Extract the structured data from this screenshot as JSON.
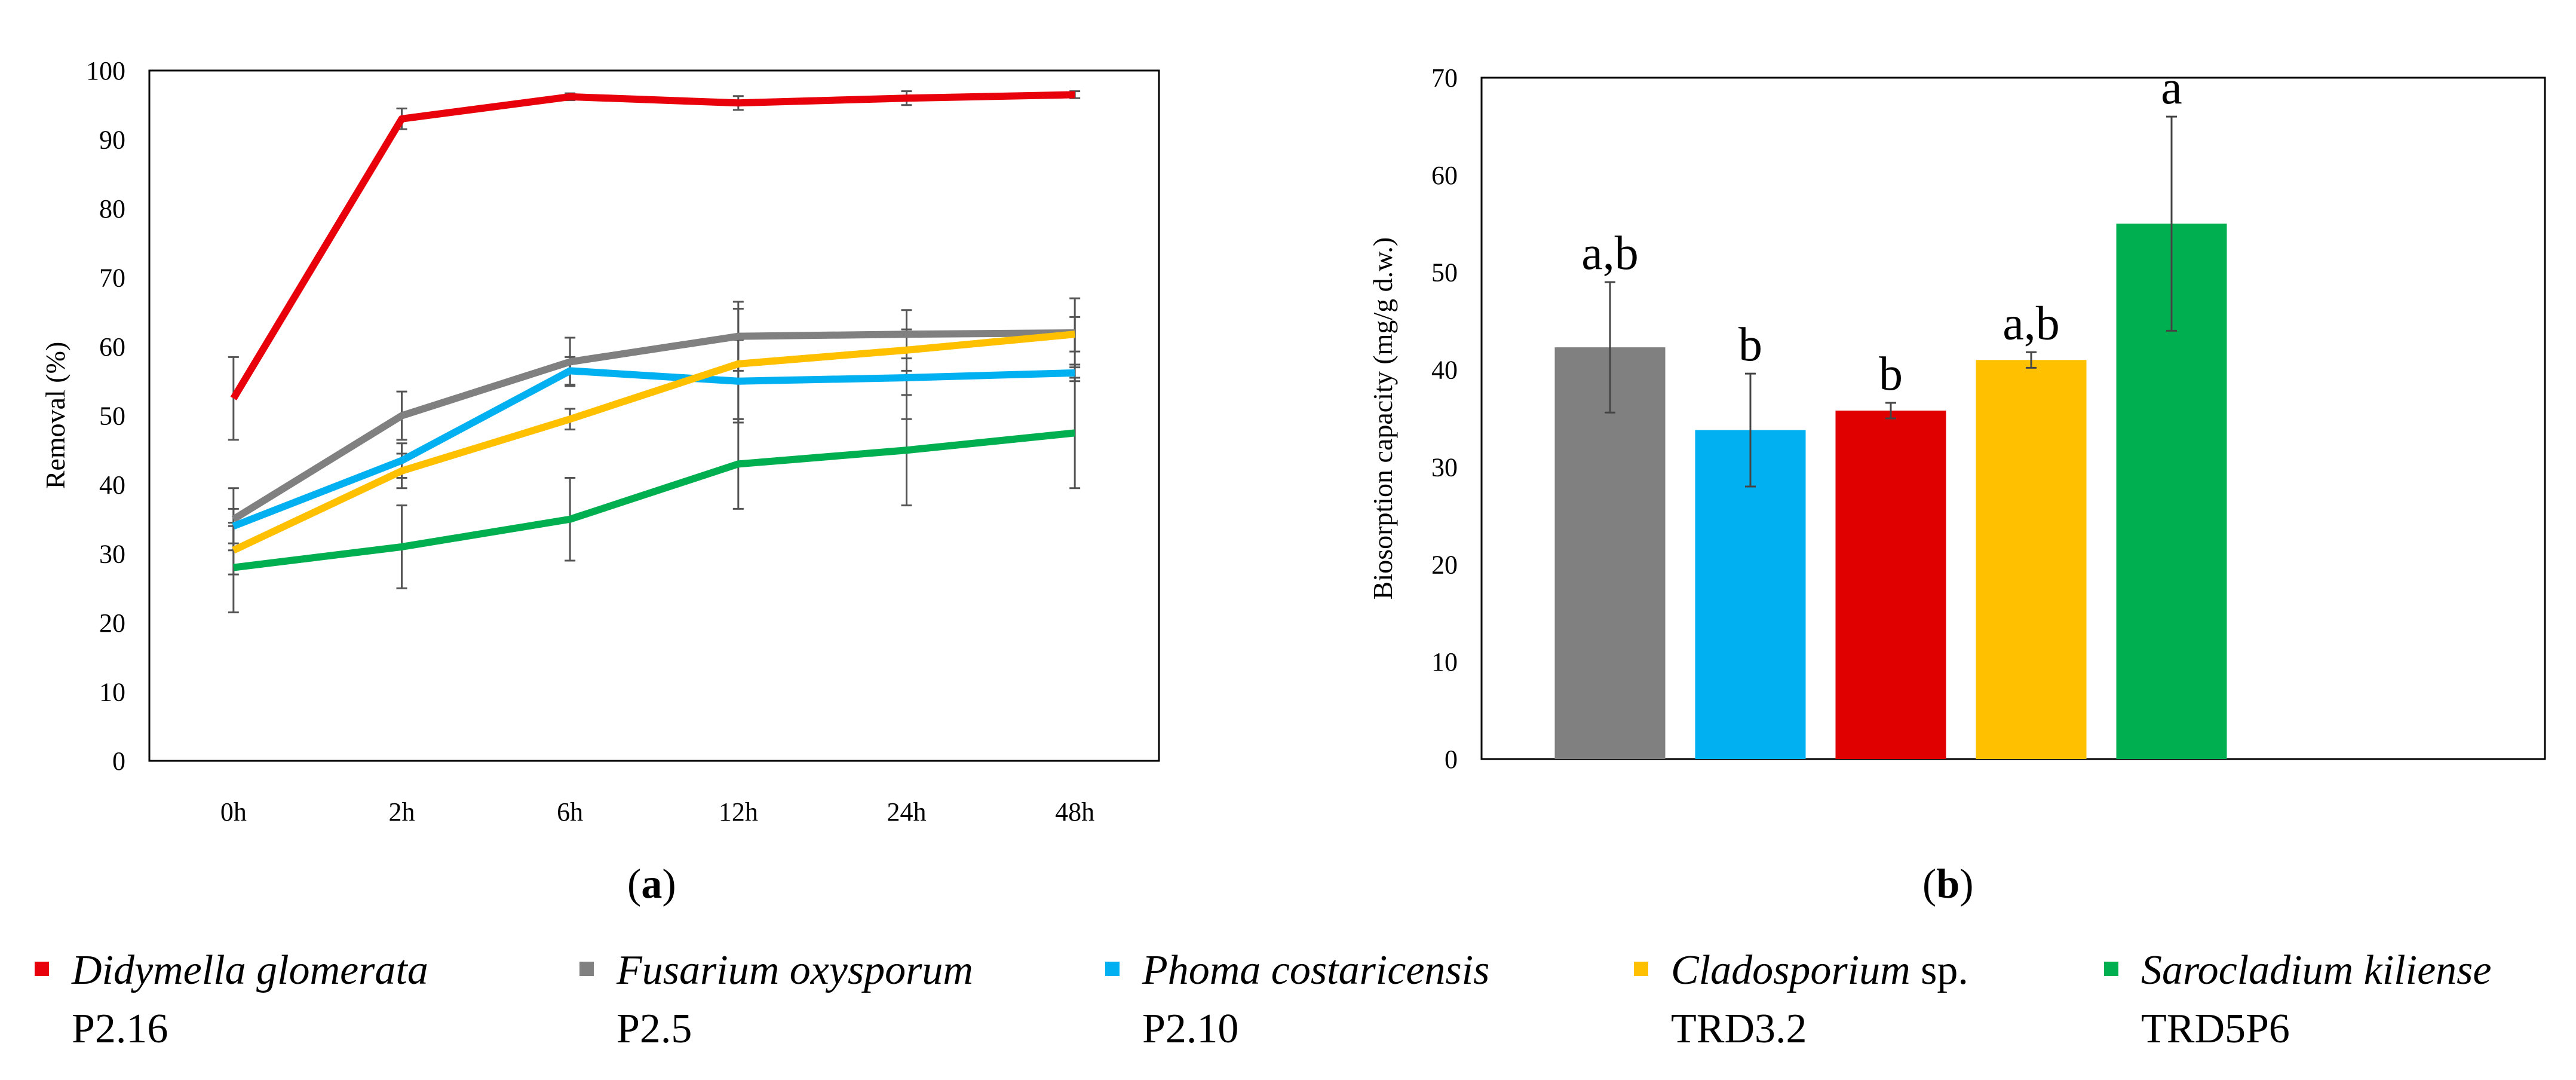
{
  "chart_data": [
    {
      "panel": "(a)",
      "type": "line",
      "ylabel": "Removal (%)",
      "xlabel": "",
      "categories": [
        "0h",
        "2h",
        "6h",
        "12h",
        "24h",
        "48h"
      ],
      "ylim": [
        0,
        100
      ],
      "yticks": [
        0,
        10,
        20,
        30,
        40,
        50,
        60,
        70,
        80,
        90,
        100
      ],
      "grid": false,
      "series": [
        {
          "name": "Didymella glomerata P2.16",
          "color": "#e8000b",
          "values": [
            52.5,
            93,
            96.2,
            95.3,
            96,
            96.5
          ],
          "errors": [
            6,
            1.5,
            0.5,
            1,
            1,
            0.5
          ]
        },
        {
          "name": "Fusarium oxysporum P2.5",
          "color": "#808080",
          "values": [
            35,
            50,
            57.8,
            61.5,
            61.8,
            62
          ],
          "errors": [
            4.5,
            3.5,
            3.5,
            5,
            3.5,
            5
          ]
        },
        {
          "name": "Phoma costaricensis P2.10",
          "color": "#00b0f0",
          "values": [
            34,
            43.5,
            56.5,
            55,
            55.5,
            56.2
          ],
          "errors": [
            2.5,
            2.5,
            2,
            6,
            6,
            1.2
          ]
        },
        {
          "name": "Cladosporium sp. TRD3.2",
          "color": "#ffc000",
          "values": [
            30.5,
            42,
            49.5,
            57.5,
            59.5,
            61.8
          ],
          "errors": [
            3.5,
            2.5,
            1.5,
            8,
            3,
            2.5
          ]
        },
        {
          "name": "Sarocladium kiliense TRD5P6",
          "color": "#00b050",
          "values": [
            28,
            31,
            35,
            43,
            45,
            47.5
          ],
          "errors": [
            6.5,
            6,
            6,
            6.5,
            8,
            8
          ]
        }
      ]
    },
    {
      "panel": "(b)",
      "type": "bar",
      "ylabel": "Biosorption capacity (mg/g d.w.)",
      "xlabel": "",
      "categories": [
        "Fusarium oxysporum P2.5",
        "Phoma costaricensis P2.10",
        "Didymella glomerata P2.16",
        "Cladosporium sp. TRD3.2",
        "Sarocladium kiliense TRD5P6"
      ],
      "values": [
        42.3,
        33.8,
        35.8,
        41,
        55
      ],
      "errors": [
        6.7,
        5.8,
        0.8,
        0.8,
        11
      ],
      "colors": [
        "#808080",
        "#00b0f0",
        "#e00000",
        "#ffc000",
        "#00b050"
      ],
      "letters": [
        "a,b",
        "b",
        "b",
        "a,b",
        "a"
      ],
      "ylim": [
        0,
        70
      ],
      "yticks": [
        0,
        10,
        20,
        30,
        40,
        50,
        60,
        70
      ],
      "grid": false
    }
  ],
  "panel_labels": {
    "a": "a",
    "b": "b"
  },
  "legend": [
    {
      "italic": "Didymella glomerata",
      "rest": "",
      "strain": "P2.16",
      "color": "#e8000b"
    },
    {
      "italic": "Fusarium oxysporum",
      "rest": "",
      "strain": "P2.5",
      "color": "#808080"
    },
    {
      "italic": "Phoma costaricensis",
      "rest": "",
      "strain": "P2.10",
      "color": "#00b0f0"
    },
    {
      "italic": "Cladosporium",
      "rest": " sp.",
      "strain": "TRD3.2",
      "color": "#ffc000"
    },
    {
      "italic": "Sarocladium kiliense",
      "rest": "",
      "strain": "TRD5P6",
      "color": "#00b050"
    }
  ]
}
